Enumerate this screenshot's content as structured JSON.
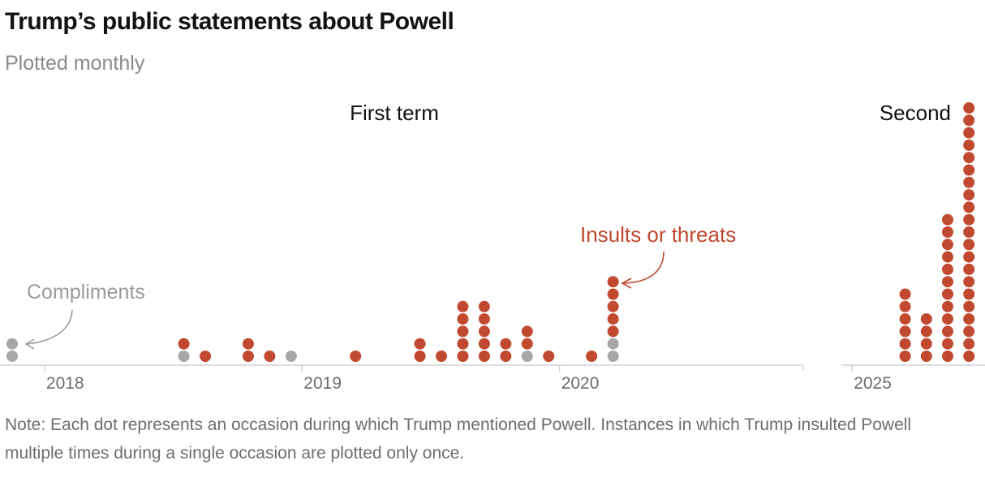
{
  "header": {
    "title": "Trump’s public statements about Powell",
    "subtitle": "Plotted monthly"
  },
  "note": "Note: Each dot represents an occasion during which Trump mentioned Powell. Instances in which Trump insulted Powell multiple times during a single occasion are plotted only once.",
  "colors": {
    "insult": "#c0492f",
    "compliment": "#a7a7a7",
    "axis": "#c8c8c8",
    "tick_text": "#6d6d6d",
    "annotation_grey": "#9a9a9a"
  },
  "chart_data": {
    "type": "dot-plot",
    "title": "Trump’s public statements about Powell",
    "subtitle": "Plotted monthly",
    "period_labels": [
      "First term",
      "Second"
    ],
    "annotations": [
      "Compliments",
      "Insults or threats"
    ],
    "x_ticks": [
      "2018",
      "2019",
      "2020",
      "2025"
    ],
    "series_names": [
      "Insults or threats",
      "Compliments"
    ],
    "panels": [
      {
        "label": "First term",
        "x_range": [
          "2017-11",
          "2020-12"
        ],
        "months": [
          {
            "month": "2017-11",
            "compliments": 2,
            "insults": 0
          },
          {
            "month": "2018-07",
            "compliments": 1,
            "insults": 1
          },
          {
            "month": "2018-08",
            "compliments": 0,
            "insults": 1
          },
          {
            "month": "2018-10",
            "compliments": 0,
            "insults": 2
          },
          {
            "month": "2018-11",
            "compliments": 0,
            "insults": 1
          },
          {
            "month": "2018-12",
            "compliments": 1,
            "insults": 0
          },
          {
            "month": "2019-03",
            "compliments": 0,
            "insults": 1
          },
          {
            "month": "2019-06",
            "compliments": 0,
            "insults": 2
          },
          {
            "month": "2019-07",
            "compliments": 0,
            "insults": 1
          },
          {
            "month": "2019-08",
            "compliments": 0,
            "insults": 5
          },
          {
            "month": "2019-09",
            "compliments": 0,
            "insults": 5
          },
          {
            "month": "2019-10",
            "compliments": 0,
            "insults": 2
          },
          {
            "month": "2019-11",
            "compliments": 1,
            "insults": 2
          },
          {
            "month": "2019-12",
            "compliments": 0,
            "insults": 1
          },
          {
            "month": "2020-02",
            "compliments": 0,
            "insults": 1
          },
          {
            "month": "2020-03",
            "compliments": 2,
            "insults": 5
          }
        ]
      },
      {
        "label": "Second",
        "x_range": [
          "2024-12",
          "2025-07"
        ],
        "months": [
          {
            "month": "2025-03",
            "compliments": 0,
            "insults": 6
          },
          {
            "month": "2025-04",
            "compliments": 0,
            "insults": 4
          },
          {
            "month": "2025-05",
            "compliments": 0,
            "insults": 12
          },
          {
            "month": "2025-06",
            "compliments": 0,
            "insults": 21
          }
        ]
      }
    ]
  }
}
